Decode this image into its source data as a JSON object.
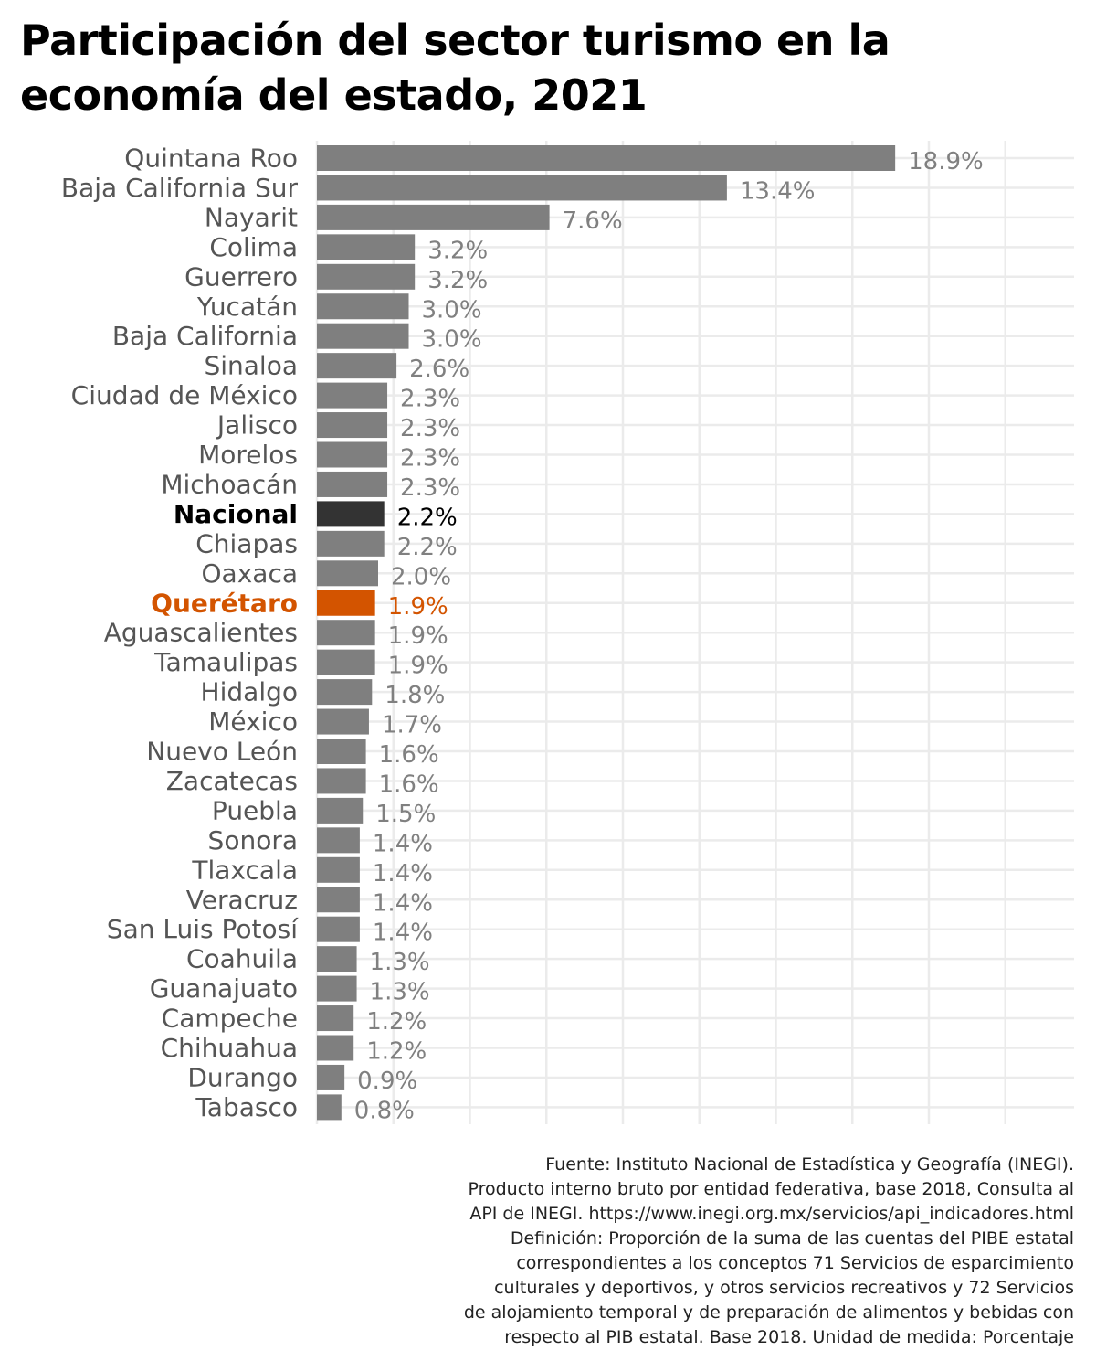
{
  "title_lines": [
    "Participación del sector turismo en la",
    "economía del estado, 2021"
  ],
  "chart_data": {
    "type": "bar",
    "orientation": "horizontal",
    "title": "Participación del sector turismo en la economía del estado, 2021",
    "xlabel": "",
    "ylabel": "",
    "xlim": [
      0,
      22
    ],
    "grid": true,
    "legend": "none",
    "categories": [
      "Quintana Roo",
      "Baja California Sur",
      "Nayarit",
      "Colima",
      "Guerrero",
      "Yucatán",
      "Baja California",
      "Sinaloa",
      "Ciudad de México",
      "Jalisco",
      "Morelos",
      "Michoacán",
      "Nacional",
      "Chiapas",
      "Oaxaca",
      "Querétaro",
      "Aguascalientes",
      "Tamaulipas",
      "Hidalgo",
      "México",
      "Nuevo León",
      "Zacatecas",
      "Puebla",
      "Sonora",
      "Tlaxcala",
      "Veracruz",
      "San Luis Potosí",
      "Coahuila",
      "Guanajuato",
      "Campeche",
      "Chihuahua",
      "Durango",
      "Tabasco"
    ],
    "values": [
      18.9,
      13.4,
      7.6,
      3.2,
      3.2,
      3.0,
      3.0,
      2.6,
      2.3,
      2.3,
      2.3,
      2.3,
      2.2,
      2.2,
      2.0,
      1.9,
      1.9,
      1.9,
      1.8,
      1.7,
      1.6,
      1.6,
      1.5,
      1.4,
      1.4,
      1.4,
      1.4,
      1.3,
      1.3,
      1.2,
      1.2,
      0.9,
      0.8
    ],
    "labels": [
      "18.9%",
      "13.4%",
      "7.6%",
      "3.2%",
      "3.2%",
      "3.0%",
      "3.0%",
      "2.6%",
      "2.3%",
      "2.3%",
      "2.3%",
      "2.3%",
      "2.2%",
      "2.2%",
      "2.0%",
      "1.9%",
      "1.9%",
      "1.9%",
      "1.8%",
      "1.7%",
      "1.6%",
      "1.6%",
      "1.5%",
      "1.4%",
      "1.4%",
      "1.4%",
      "1.4%",
      "1.3%",
      "1.3%",
      "1.2%",
      "1.2%",
      "0.9%",
      "0.8%"
    ],
    "highlights": {
      "Nacional": "#333333",
      "Querétaro": "#d35400"
    },
    "colors": {
      "default_bar": "#7f7f7f",
      "default_label": "#808080",
      "default_category": "#555555",
      "grid": "#ebebeb",
      "nacional_label": "#000000",
      "queretaro_label": "#d35400"
    }
  },
  "caption_lines": [
    "Fuente: Instituto Nacional de Estadística y Geografía (INEGI).",
    "Producto interno bruto por entidad federativa, base 2018, Consulta al",
    "API de INEGI. https://www.inegi.org.mx/servicios/api_indicadores.html",
    "Definición: Proporción de la suma de las cuentas del PIBE estatal",
    "correspondientes a los conceptos 71 Servicios de esparcimiento",
    "culturales y deportivos, y otros servicios recreativos y 72 Servicios",
    "de alojamiento temporal y de preparación de alimentos y bebidas con",
    "respecto al PIB estatal. Base 2018. Unidad de medida: Porcentaje"
  ]
}
